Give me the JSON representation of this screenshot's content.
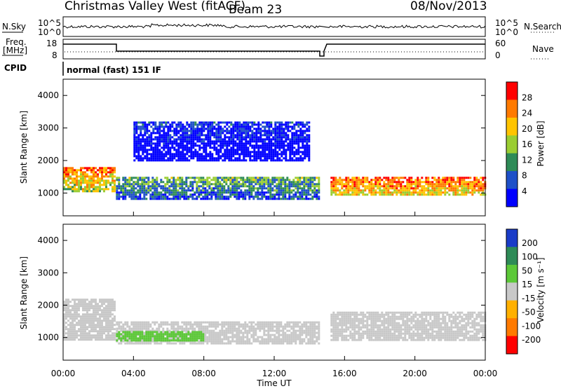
{
  "header": {
    "site": "Christmas Valley West (fitACF)",
    "beam": "Beam 23",
    "date": "08/Nov/2013"
  },
  "labels": {
    "nsky": "N.Sky",
    "nsearch": "N.Search",
    "freq_top": "Freq.",
    "freq_unit": "[MHz]",
    "nave": "Nave",
    "cpid": "CPID",
    "cpid_value": "normal (fast) 151 IF",
    "x_axis": "Time UT",
    "y_axis": "Slant Range [km]",
    "power_title": "Power [dB]",
    "velocity_title": "Velocity [m s⁻¹]"
  },
  "noise_ticks": {
    "left_top": "10^5",
    "left_bottom": "10^0",
    "right_top": "10^5",
    "right_bottom": "10^0"
  },
  "freq_ticks": {
    "left": [
      "18",
      "8"
    ],
    "right": [
      "60",
      "0"
    ]
  },
  "x_ticks": [
    "00:00",
    "04:00",
    "08:00",
    "12:00",
    "16:00",
    "20:00",
    "00:00"
  ],
  "y_ticks": [
    "1000",
    "2000",
    "3000",
    "4000"
  ],
  "power_scale": {
    "ticks": [
      "28",
      "24",
      "20",
      "16",
      "12",
      "8",
      "4"
    ],
    "colors": [
      "#ff0000",
      "#ff7a00",
      "#ffc400",
      "#9acd32",
      "#2e8b57",
      "#1e50c8",
      "#0000ff"
    ]
  },
  "velocity_scale": {
    "ticks": [
      "200",
      "100",
      "50",
      "15",
      "-15",
      "-50",
      "-100",
      "-200"
    ],
    "colors": [
      "#1a3cc8",
      "#2e8b57",
      "#5cc838",
      "#c8c8c8",
      "#ffb000",
      "#ff7a00",
      "#ff0000"
    ]
  },
  "chart_data": {
    "type": "heatmap",
    "x_unit": "hours UT",
    "xlim": [
      0,
      24
    ],
    "ylim": [
      300,
      4500
    ],
    "data_gap_hours": [
      14.6,
      15.1
    ],
    "power_bands": [
      {
        "x": [
          0,
          3
        ],
        "range_km": [
          1000,
          1800
        ],
        "power_db": 24
      },
      {
        "x": [
          3,
          14.6
        ],
        "range_km": [
          800,
          1500
        ],
        "power_db": 14
      },
      {
        "x": [
          15.2,
          24
        ],
        "range_km": [
          900,
          1500
        ],
        "power_db": 26
      },
      {
        "x": [
          4,
          14
        ],
        "range_km": [
          2000,
          3200
        ],
        "power_db": 6
      }
    ],
    "velocity_bands": [
      {
        "x": [
          0,
          3
        ],
        "range_km": [
          900,
          2200
        ],
        "velocity": 0
      },
      {
        "x": [
          3,
          14.6
        ],
        "range_km": [
          800,
          1500
        ],
        "velocity": 0
      },
      {
        "x": [
          15.2,
          24
        ],
        "range_km": [
          900,
          1800
        ],
        "velocity": 0
      },
      {
        "x": [
          3,
          8
        ],
        "range_km": [
          900,
          1200
        ],
        "velocity": 40
      }
    ]
  }
}
